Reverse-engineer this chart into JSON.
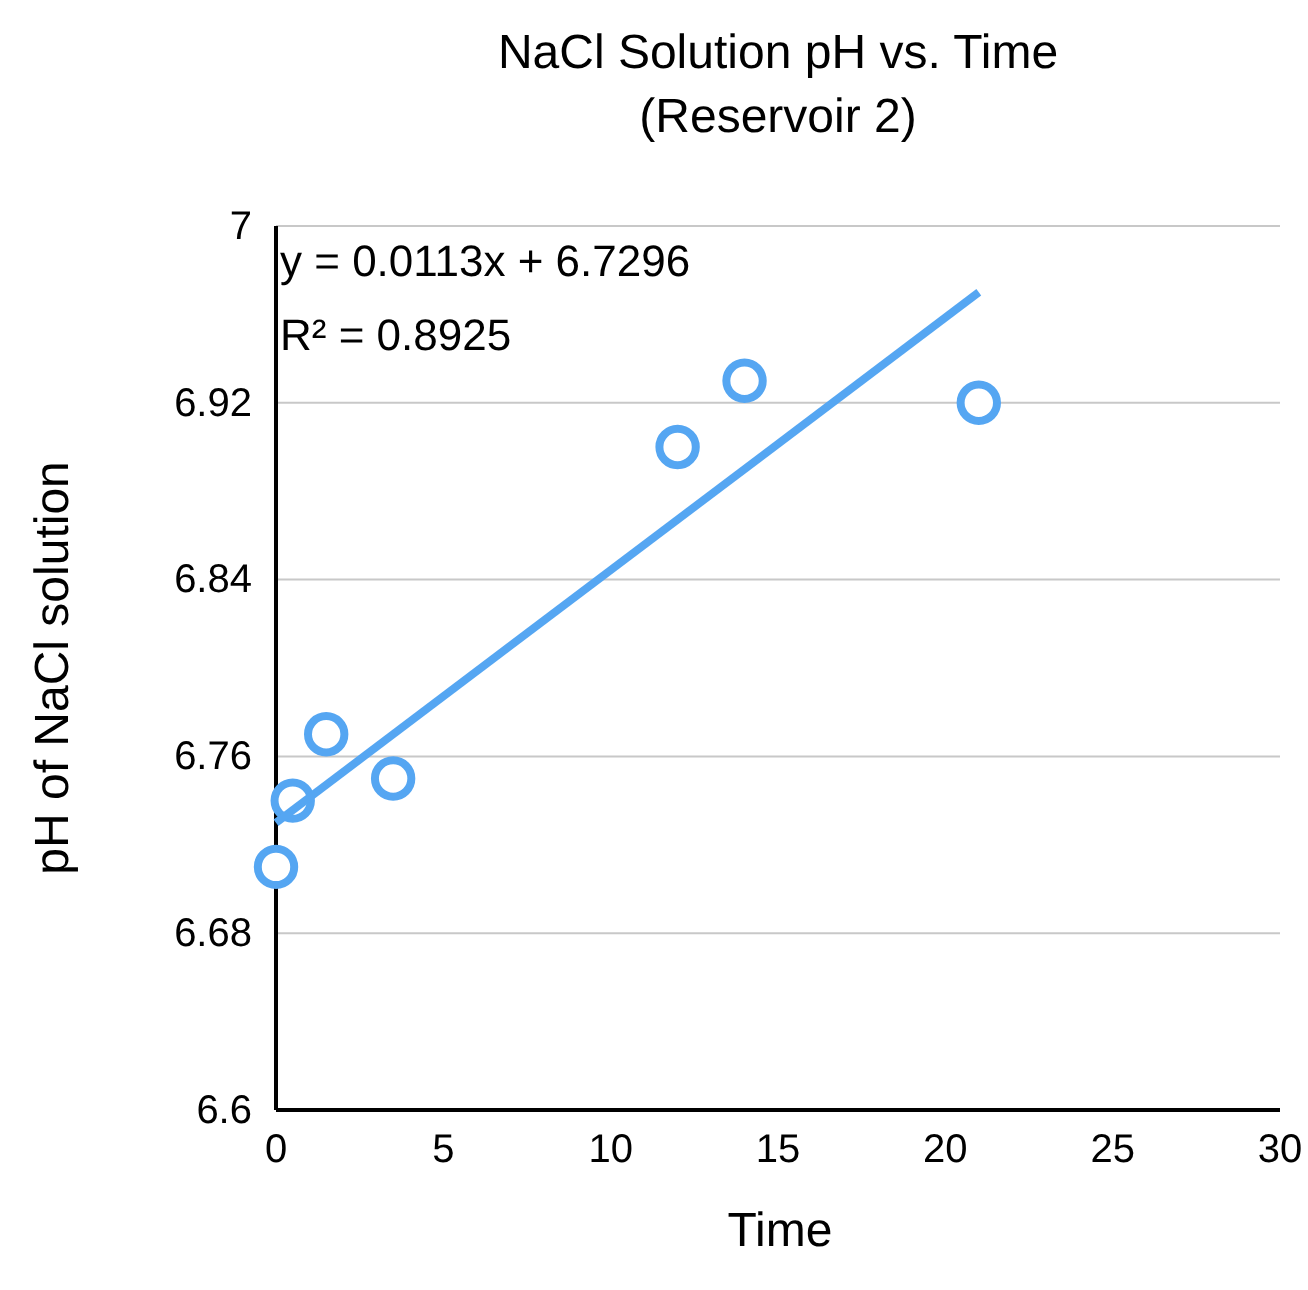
{
  "chart_data": {
    "type": "scatter",
    "title": "NaCl Solution pH vs. Time",
    "subtitle": "(Reservoir 2)",
    "xlabel": "Time",
    "ylabel": "pH of NaCl solution",
    "x": [
      0,
      0.5,
      1.5,
      3.5,
      12,
      14,
      21
    ],
    "series": [
      {
        "color": "#55a6f2",
        "values": [
          6.71,
          6.74,
          6.77,
          6.75,
          6.9,
          6.93,
          6.92
        ],
        "marker": "circle"
      },
      {
        "type": "line",
        "color": "#55a6f2",
        "x": [
          0,
          21
        ],
        "values": [
          6.73,
          6.97
        ],
        "marker": "none"
      }
    ],
    "annotations": [
      "y = 0.0113x + 6.7296",
      "R² = 0.8925"
    ],
    "xlim": [
      0,
      30
    ],
    "xticks": [
      0,
      5,
      10,
      15,
      20,
      25,
      30
    ],
    "ylim": [
      6.6,
      7
    ],
    "yticks": [
      6.6,
      6.68,
      6.76,
      6.84,
      6.92,
      7
    ],
    "grid": "y"
  }
}
